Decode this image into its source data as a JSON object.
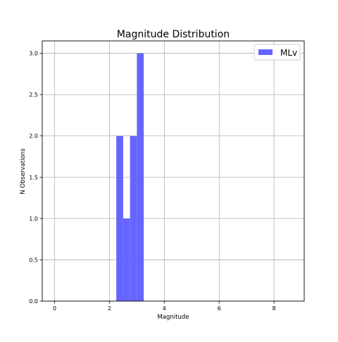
{
  "chart_data": {
    "type": "bar",
    "title": "Magnitude Distribution",
    "xlabel": "Magnitude",
    "ylabel": "N Observations",
    "xlim": [
      -0.45,
      9.1
    ],
    "ylim": [
      0,
      3.15
    ],
    "xticks": [
      0,
      2,
      4,
      6,
      8
    ],
    "yticks": [
      0.0,
      0.5,
      1.0,
      1.5,
      2.0,
      2.5,
      3.0
    ],
    "xtick_labels": [
      "0",
      "2",
      "4",
      "6",
      "8"
    ],
    "ytick_labels": [
      "0.0",
      "0.5",
      "1.0",
      "1.5",
      "2.0",
      "2.5",
      "3.0"
    ],
    "grid": true,
    "legend_position": "top-right",
    "bin_width": 0.25,
    "series": [
      {
        "name": "MLv",
        "color": "#6666ff",
        "bins": [
          {
            "start": 2.25,
            "count": 2
          },
          {
            "start": 2.5,
            "count": 1
          },
          {
            "start": 2.75,
            "count": 2
          },
          {
            "start": 3.0,
            "count": 3
          }
        ]
      }
    ]
  }
}
